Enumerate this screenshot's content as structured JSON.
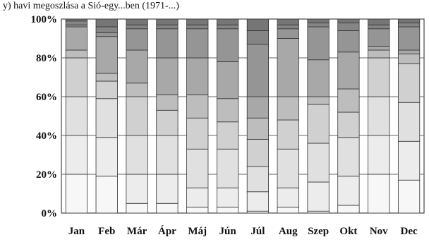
{
  "header_fragment": "y) havi megoszlása a Sió-egy...ben (1971-...)",
  "chart_data": {
    "type": "bar",
    "stacked": true,
    "percent": true,
    "categories": [
      "Jan",
      "Feb",
      "Már",
      "Ápr",
      "Máj",
      "Jún",
      "Júl",
      "Aug",
      "Szep",
      "Okt",
      "Nov",
      "Dec"
    ],
    "ylim": [
      0,
      100
    ],
    "yticks": [
      "0%",
      "20%",
      "40%",
      "60%",
      "80%",
      "100%"
    ],
    "grid": true,
    "legend": "none",
    "segment_colors": [
      "#f7f7f7",
      "#ececec",
      "#e0e0e0",
      "#d0d0d0",
      "#bdbdbd",
      "#a8a8a8",
      "#959595",
      "#858585",
      "#767676",
      "#6a6a6a",
      "#a9a9a9",
      "#bcbcbc",
      "#cfcfcf",
      "#e2e2e2"
    ],
    "cumulative_bounds": [
      [
        0,
        20,
        40,
        60,
        80,
        84,
        96,
        97,
        99,
        100
      ],
      [
        0,
        19,
        39,
        59,
        68,
        72,
        91,
        93,
        96,
        100
      ],
      [
        0,
        5,
        20,
        40,
        60,
        67,
        84,
        95,
        97,
        100
      ],
      [
        0,
        5,
        20,
        40,
        53,
        61,
        80,
        95,
        97,
        100
      ],
      [
        0,
        3,
        13,
        33,
        49,
        61,
        80,
        95,
        97,
        100
      ],
      [
        0,
        3,
        13,
        33,
        47,
        59,
        78,
        95,
        97,
        100
      ],
      [
        0,
        1,
        11,
        24,
        38,
        49,
        60,
        87,
        94,
        100
      ],
      [
        0,
        3,
        13,
        33,
        48,
        60,
        90,
        95,
        97,
        100
      ],
      [
        0,
        1,
        16,
        36,
        56,
        60,
        79,
        96,
        98,
        100
      ],
      [
        0,
        4,
        19,
        39,
        52,
        64,
        83,
        94,
        98,
        100
      ],
      [
        0,
        20,
        40,
        60,
        80,
        84,
        86,
        95,
        97,
        100
      ],
      [
        0,
        17,
        37,
        57,
        77,
        82,
        84,
        96,
        98,
        100
      ]
    ]
  }
}
